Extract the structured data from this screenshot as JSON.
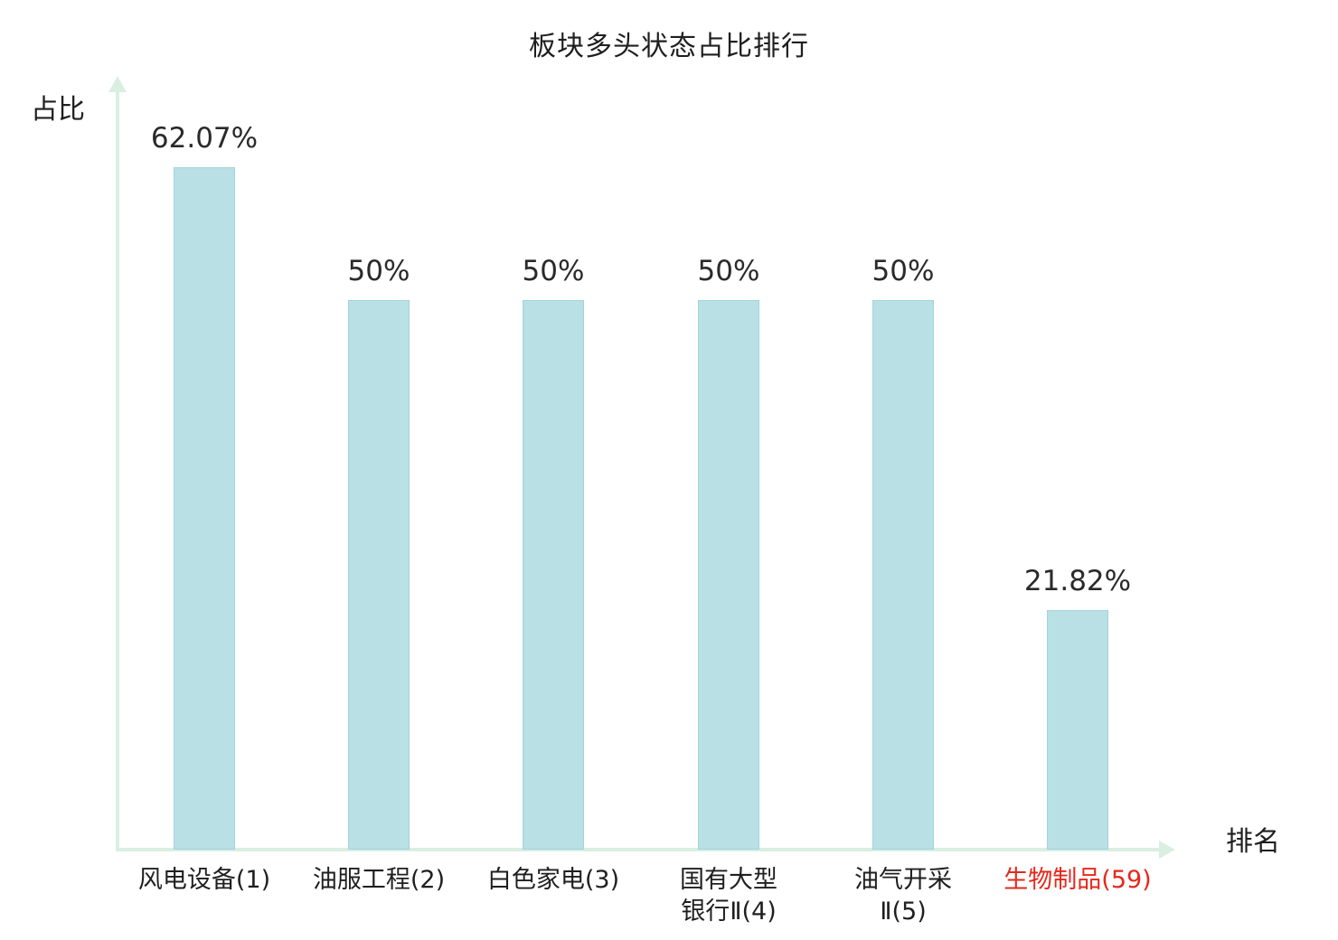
{
  "title": "板块多头状态占比排行",
  "y_axis_label": "占比",
  "x_axis_label": "排名",
  "colors": {
    "bar_fill": "#b9e0e5",
    "bar_border": "#a3d3da",
    "axis": "#d9efe2",
    "text": "#2a2a2a",
    "highlight": "#e5291c"
  },
  "chart_data": {
    "type": "bar",
    "title": "板块多头状态占比排行",
    "xlabel": "排名",
    "ylabel": "占比",
    "ylim": [
      0,
      70
    ],
    "grid": false,
    "legend": "none",
    "categories": [
      "风电设备(1)",
      "油服工程(2)",
      "白色家电(3)",
      "国有大型银行Ⅱ(4)",
      "油气开采Ⅱ(5)",
      "生物制品(59)"
    ],
    "values": [
      62.07,
      50,
      50,
      50,
      50,
      21.82
    ],
    "bars": [
      {
        "category": "风电设备(1)",
        "category_display": "风电设备(1)",
        "value": 62.07,
        "value_label": "62.07%",
        "highlight": false
      },
      {
        "category": "油服工程(2)",
        "category_display": "油服工程(2)",
        "value": 50,
        "value_label": "50%",
        "highlight": false
      },
      {
        "category": "白色家电(3)",
        "category_display": "白色家电(3)",
        "value": 50,
        "value_label": "50%",
        "highlight": false
      },
      {
        "category": "国有大型银行Ⅱ(4)",
        "category_display": "国有大型\n银行Ⅱ(4)",
        "value": 50,
        "value_label": "50%",
        "highlight": false
      },
      {
        "category": "油气开采Ⅱ(5)",
        "category_display": "油气开采\nⅡ(5)",
        "value": 50,
        "value_label": "50%",
        "highlight": false
      },
      {
        "category": "生物制品(59)",
        "category_display": "生物制品(59)",
        "value": 21.82,
        "value_label": "21.82%",
        "highlight": true
      }
    ]
  }
}
